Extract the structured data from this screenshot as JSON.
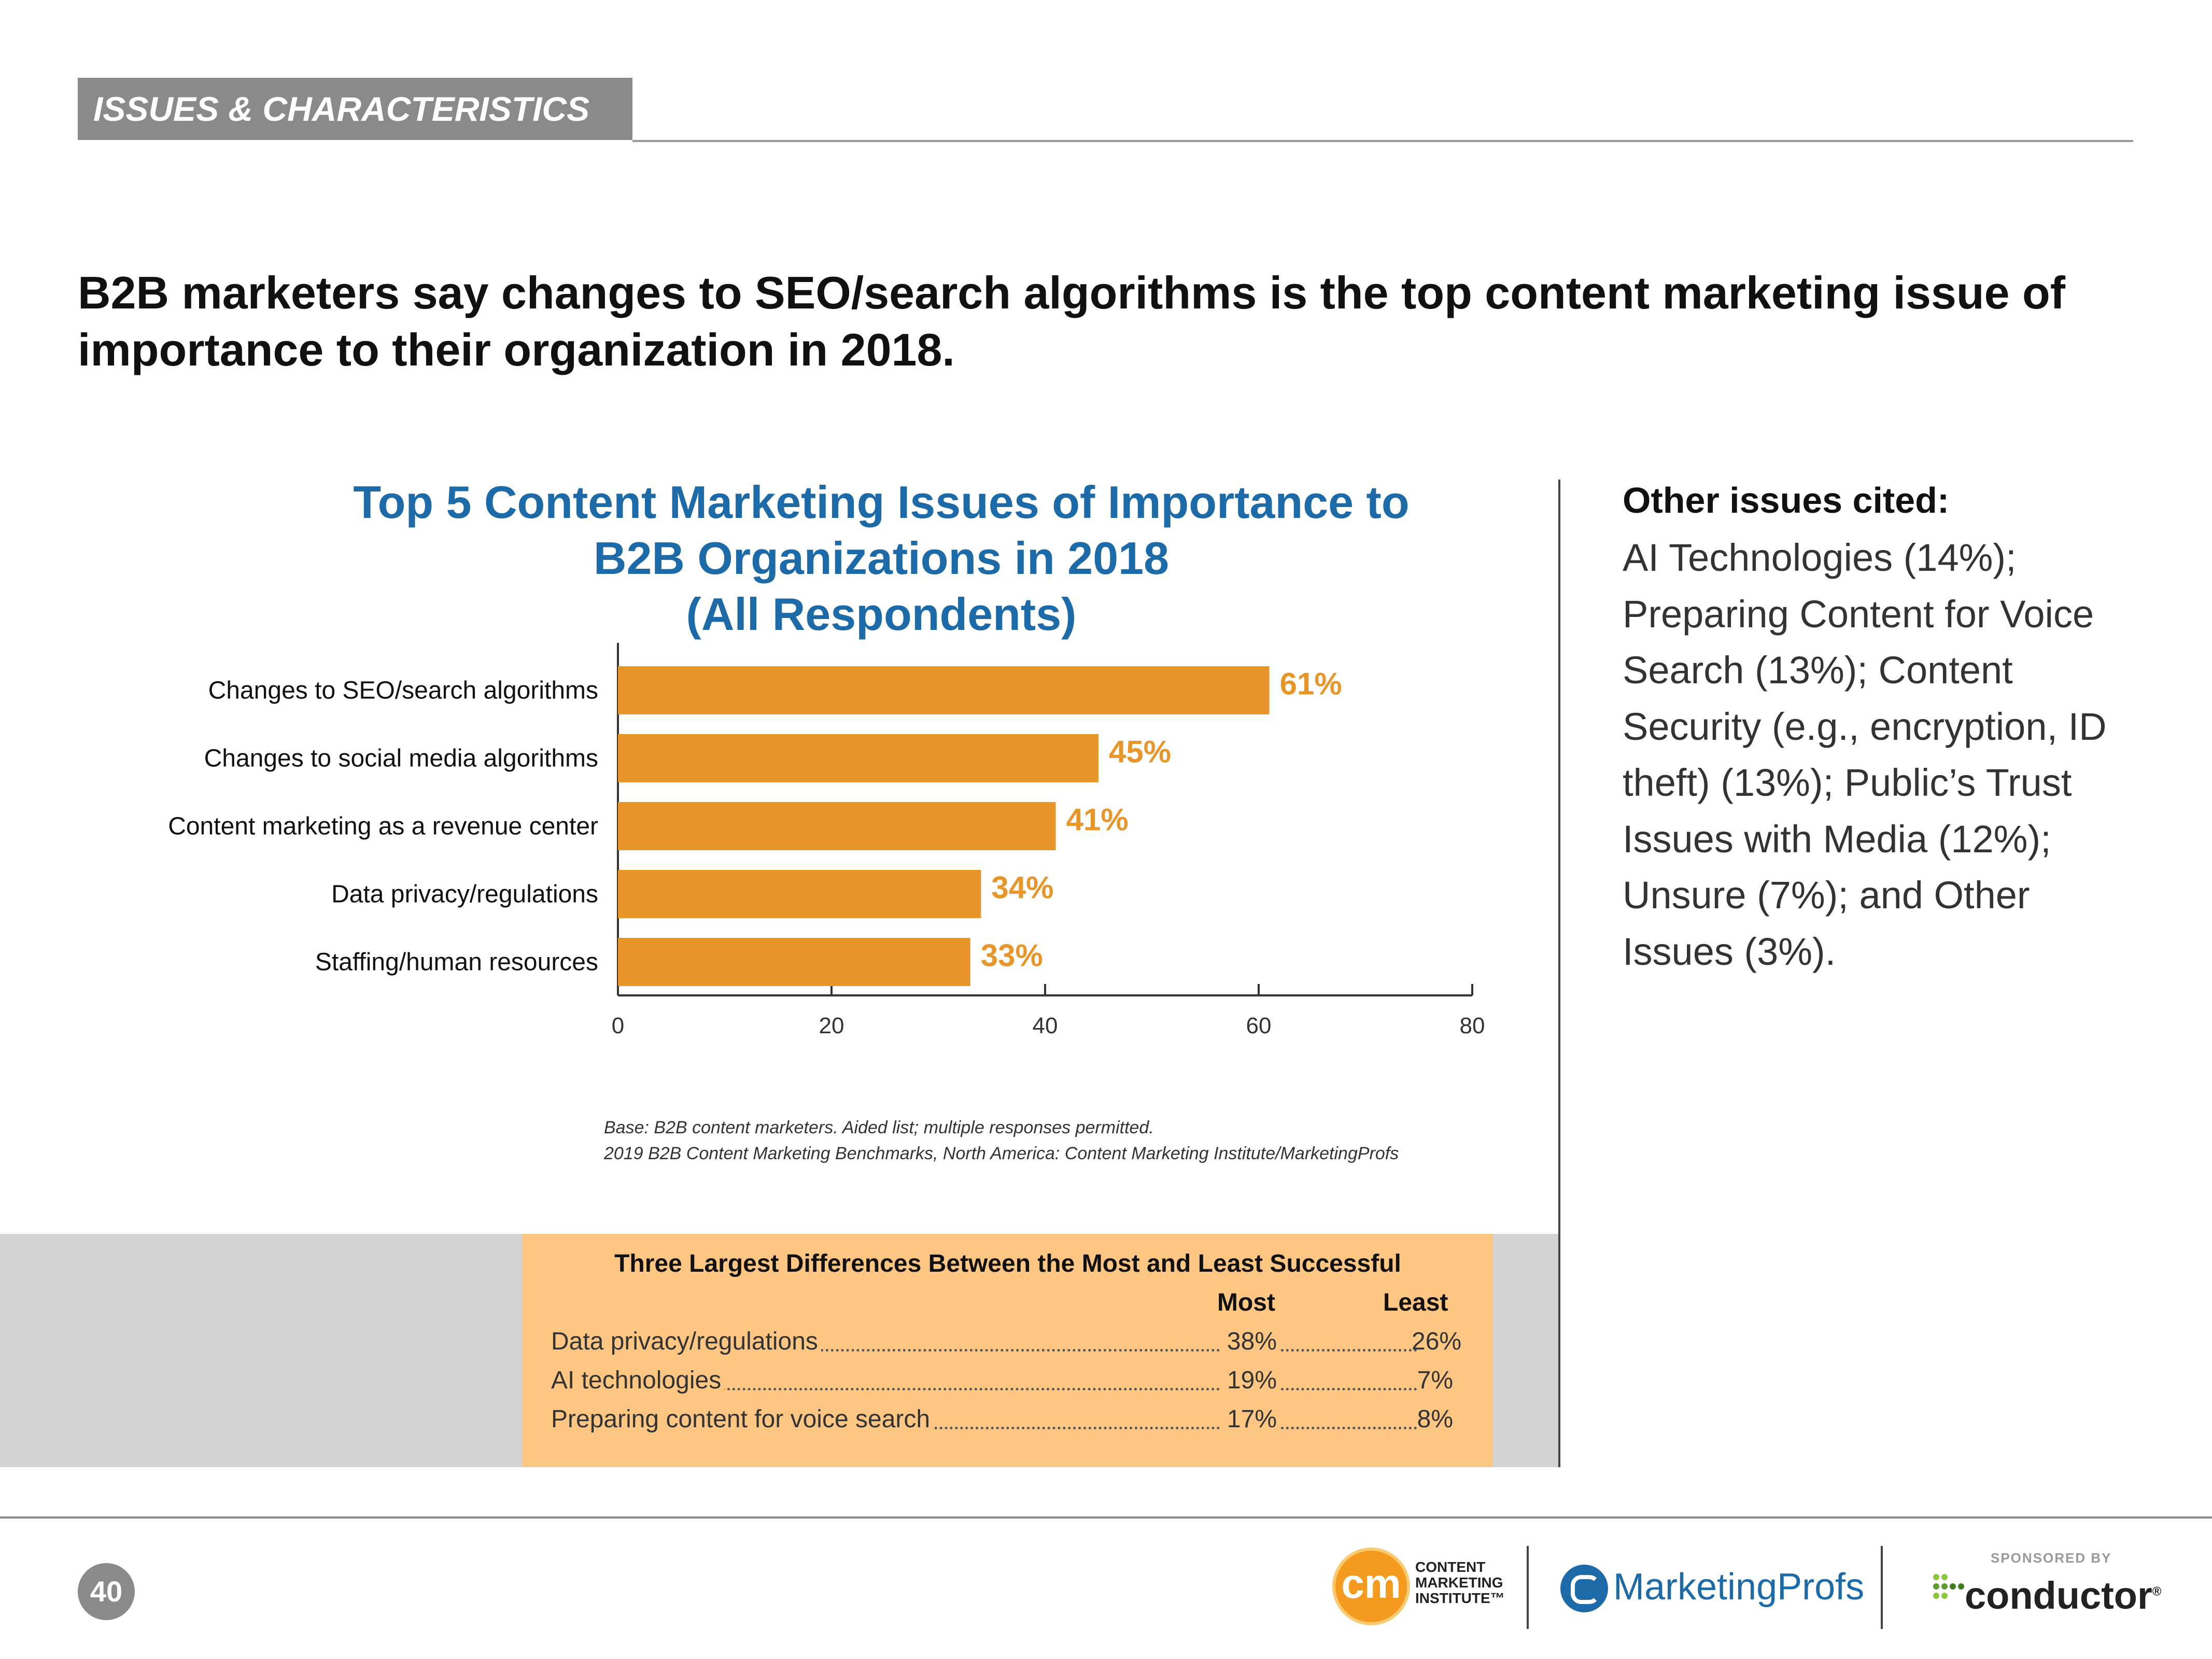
{
  "section_tag": "ISSUES & CHARACTERISTICS",
  "headline": "B2B marketers say changes to SEO/search algorithms is the top content marketing issue of importance to their organization in 2018.",
  "chart_title_lines": [
    "Top 5 Content Marketing Issues of Importance to",
    "B2B Organizations in 2018",
    "(All Respondents)"
  ],
  "chart_data": {
    "type": "bar",
    "orientation": "horizontal",
    "title": "Top 5 Content Marketing Issues of Importance to B2B Organizations in 2018 (All Respondents)",
    "categories": [
      "Changes to SEO/search algorithms",
      "Changes to social media algorithms",
      "Content marketing as a revenue center",
      "Data privacy/regulations",
      "Staffing/human resources"
    ],
    "values": [
      61,
      45,
      41,
      34,
      33
    ],
    "value_labels": [
      "61%",
      "45%",
      "41%",
      "34%",
      "33%"
    ],
    "xlim": [
      0,
      80
    ],
    "xticks": [
      0,
      20,
      40,
      60,
      80
    ],
    "xlabel": "",
    "ylabel": "",
    "bar_color": "#e8952a"
  },
  "base_note_lines": [
    "Base: B2B content marketers. Aided list; multiple responses permitted.",
    "2019 B2B Content Marketing Benchmarks, North America: Content Marketing Institute/MarketingProfs"
  ],
  "differences": {
    "title": "Three Largest Differences Between the Most and Least Successful",
    "col_most": "Most",
    "col_least": "Least",
    "rows": [
      {
        "label": "Data privacy/regulations",
        "most": "38%",
        "least": "26%"
      },
      {
        "label": "AI technologies",
        "most": "19%",
        "least": "7%"
      },
      {
        "label": "Preparing content for voice search",
        "most": "17%",
        "least": "8%"
      }
    ]
  },
  "other_issues": {
    "heading": "Other issues cited:",
    "lines": [
      "AI Technologies (14%);",
      "Preparing Content for Voice",
      "Search (13%); Content",
      "Security (e.g., encryption, ID",
      "theft) (13%); Public’s Trust",
      "Issues with Media (12%);",
      "Unsure (7%); and Other",
      "Issues (3%)."
    ]
  },
  "footer": {
    "page_number": "40",
    "cmi_monogram": "cm",
    "cmi_lines": [
      "CONTENT",
      "MARKETING",
      "INSTITUTE™"
    ],
    "marketingprofs": "MarketingProfs",
    "sponsored_by": "SPONSORED BY",
    "conductor": "conductor",
    "conductor_mark": "®"
  },
  "colors": {
    "accent_blue": "#1d6aa9",
    "bar_orange": "#e8952a",
    "box_orange": "#fdc783",
    "gray": "#8a8a8a"
  }
}
